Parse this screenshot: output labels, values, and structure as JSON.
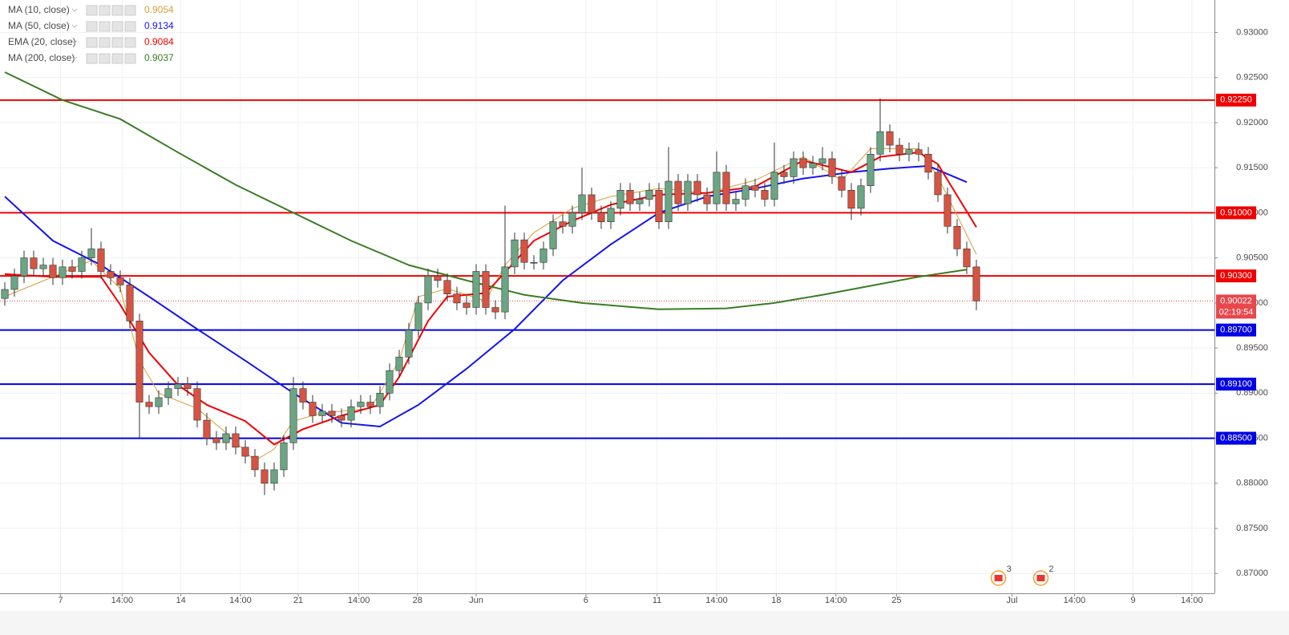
{
  "chart_data": {
    "type": "candlestick",
    "xlim": [
      -0.5,
      125.75
    ],
    "ylim": [
      0.8678,
      0.9336
    ],
    "yticks": [
      {
        "value": 0.93,
        "label": "0.93000"
      },
      {
        "value": 0.925,
        "label": "0.92500"
      },
      {
        "value": 0.92,
        "label": "0.92000"
      },
      {
        "value": 0.915,
        "label": "0.91500"
      },
      {
        "value": 0.91,
        "label": "0.91000"
      },
      {
        "value": 0.905,
        "label": "0.90500"
      },
      {
        "value": 0.9,
        "label": "0.90000"
      },
      {
        "value": 0.895,
        "label": "0.89500"
      },
      {
        "value": 0.89,
        "label": "0.89000"
      },
      {
        "value": 0.885,
        "label": "0.88500"
      },
      {
        "value": 0.88,
        "label": "0.88000"
      },
      {
        "value": 0.875,
        "label": "0.87500"
      },
      {
        "value": 0.87,
        "label": "0.87000"
      }
    ],
    "xticks": [
      {
        "value": 5.8,
        "label": "7"
      },
      {
        "value": 12.2,
        "label": "14:00"
      },
      {
        "value": 18.3,
        "label": "14"
      },
      {
        "value": 24.5,
        "label": "14:00"
      },
      {
        "value": 30.5,
        "label": "21"
      },
      {
        "value": 36.8,
        "label": "14:00"
      },
      {
        "value": 42.9,
        "label": "28"
      },
      {
        "value": 49,
        "label": "Jun"
      },
      {
        "value": 60.4,
        "label": "6"
      },
      {
        "value": 67.8,
        "label": "11"
      },
      {
        "value": 74,
        "label": "14:00"
      },
      {
        "value": 80.2,
        "label": "18"
      },
      {
        "value": 86.4,
        "label": "14:00"
      },
      {
        "value": 92.7,
        "label": "25"
      },
      {
        "value": 104.7,
        "label": "Jul"
      },
      {
        "value": 111.2,
        "label": "14:00"
      },
      {
        "value": 117.3,
        "label": "9"
      },
      {
        "value": 123.4,
        "label": "14:00"
      }
    ],
    "grid": true,
    "up_color": "#6ba583",
    "down_color": "#d75442",
    "x": [
      0,
      1,
      2,
      3,
      4,
      5,
      6,
      7,
      8,
      9,
      10,
      11,
      12,
      13,
      14,
      15,
      16,
      17,
      18,
      19,
      20,
      21,
      22,
      23,
      24,
      25,
      26,
      27,
      28,
      29,
      30,
      31,
      32,
      33,
      34,
      35,
      36,
      37,
      38,
      39,
      40,
      41,
      42,
      43,
      44,
      45,
      46,
      47,
      48,
      49,
      50,
      51,
      52,
      53,
      54,
      55,
      56,
      57,
      58,
      59,
      60,
      61,
      62,
      63,
      64,
      65,
      66,
      67,
      68,
      69,
      70,
      71,
      72,
      73,
      74,
      75,
      76,
      77,
      78,
      79,
      80,
      81,
      82,
      83,
      84,
      85,
      86,
      87,
      88,
      89,
      90,
      91,
      92,
      93,
      94,
      95,
      96,
      97,
      98,
      99,
      100,
      101
    ],
    "open": [
      0.9005,
      0.9015,
      0.903,
      0.905,
      0.9038,
      0.9042,
      0.9028,
      0.904,
      0.9035,
      0.905,
      0.906,
      0.9035,
      0.9028,
      0.902,
      0.898,
      0.889,
      0.8885,
      0.8895,
      0.8905,
      0.891,
      0.8905,
      0.887,
      0.885,
      0.8845,
      0.8855,
      0.884,
      0.883,
      0.8815,
      0.88,
      0.8815,
      0.8845,
      0.8905,
      0.889,
      0.8875,
      0.888,
      0.8875,
      0.887,
      0.8885,
      0.889,
      0.8885,
      0.89,
      0.8925,
      0.894,
      0.897,
      0.9,
      0.903,
      0.9025,
      0.901,
      0.9,
      0.8995,
      0.9035,
      0.8995,
      0.899,
      0.904,
      0.907,
      0.9045,
      0.9045,
      0.906,
      0.909,
      0.9085,
      0.91,
      0.912,
      0.91,
      0.909,
      0.9105,
      0.9125,
      0.911,
      0.9115,
      0.9125,
      0.909,
      0.9135,
      0.911,
      0.9135,
      0.912,
      0.911,
      0.9145,
      0.911,
      0.9115,
      0.913,
      0.9125,
      0.9115,
      0.9145,
      0.914,
      0.916,
      0.915,
      0.9155,
      0.916,
      0.914,
      0.9125,
      0.9105,
      0.913,
      0.9165,
      0.919,
      0.9175,
      0.9165,
      0.917,
      0.9165,
      0.9145,
      0.912,
      0.9085,
      0.906,
      0.904
    ],
    "high": [
      0.9023,
      0.9038,
      0.9058,
      0.9058,
      0.905,
      0.905,
      0.9048,
      0.9048,
      0.9058,
      0.9083,
      0.9068,
      0.9043,
      0.9036,
      0.9028,
      0.8988,
      0.8898,
      0.8903,
      0.8913,
      0.8918,
      0.8918,
      0.8913,
      0.8878,
      0.8858,
      0.8863,
      0.8863,
      0.8848,
      0.8838,
      0.8823,
      0.8823,
      0.8853,
      0.8918,
      0.8913,
      0.8898,
      0.8888,
      0.8888,
      0.8883,
      0.8893,
      0.8898,
      0.8898,
      0.8908,
      0.8933,
      0.8948,
      0.8978,
      0.9008,
      0.9038,
      0.9038,
      0.9033,
      0.9018,
      0.9008,
      0.9043,
      0.9043,
      0.9003,
      0.9108,
      0.9078,
      0.9078,
      0.9053,
      0.9068,
      0.9098,
      0.9098,
      0.9108,
      0.915,
      0.9128,
      0.9108,
      0.9113,
      0.9133,
      0.9133,
      0.9123,
      0.9133,
      0.9133,
      0.9173,
      0.9143,
      0.9143,
      0.9143,
      0.9128,
      0.9168,
      0.9153,
      0.9123,
      0.9138,
      0.9138,
      0.9133,
      0.9178,
      0.9153,
      0.9168,
      0.9168,
      0.9163,
      0.9173,
      0.9168,
      0.9148,
      0.9133,
      0.9138,
      0.9173,
      0.9227,
      0.9198,
      0.9183,
      0.9178,
      0.9178,
      0.9173,
      0.9153,
      0.9128,
      0.9093,
      0.9068,
      0.9048
    ],
    "low": [
      0.8997,
      0.9007,
      0.9022,
      0.903,
      0.903,
      0.902,
      0.902,
      0.9027,
      0.9027,
      0.9042,
      0.9027,
      0.902,
      0.9012,
      0.8972,
      0.885,
      0.8877,
      0.8877,
      0.8887,
      0.8897,
      0.8897,
      0.8862,
      0.8842,
      0.8837,
      0.8837,
      0.8832,
      0.8822,
      0.8807,
      0.8787,
      0.8792,
      0.8807,
      0.8837,
      0.8882,
      0.8867,
      0.8867,
      0.8867,
      0.8862,
      0.8862,
      0.8877,
      0.8877,
      0.8877,
      0.8892,
      0.8917,
      0.8932,
      0.8962,
      0.8992,
      0.9017,
      0.9002,
      0.8992,
      0.8987,
      0.8987,
      0.8987,
      0.8982,
      0.8982,
      0.9032,
      0.9037,
      0.9037,
      0.9037,
      0.9052,
      0.9077,
      0.9077,
      0.9092,
      0.9092,
      0.9082,
      0.9082,
      0.9097,
      0.9102,
      0.9102,
      0.9107,
      0.9082,
      0.9082,
      0.9102,
      0.9102,
      0.9112,
      0.9102,
      0.9102,
      0.9102,
      0.9102,
      0.9107,
      0.9117,
      0.9107,
      0.9107,
      0.9132,
      0.9132,
      0.9142,
      0.9142,
      0.9147,
      0.9132,
      0.9117,
      0.9092,
      0.9097,
      0.9122,
      0.9157,
      0.9167,
      0.9157,
      0.9157,
      0.9157,
      0.9137,
      0.9112,
      0.9077,
      0.9052,
      0.9032,
      0.8992
    ],
    "close": [
      0.9015,
      0.903,
      0.905,
      0.9038,
      0.9042,
      0.9028,
      0.904,
      0.9035,
      0.905,
      0.906,
      0.9035,
      0.9028,
      0.902,
      0.898,
      0.889,
      0.8885,
      0.8895,
      0.8905,
      0.891,
      0.8905,
      0.887,
      0.885,
      0.8845,
      0.8855,
      0.884,
      0.883,
      0.8815,
      0.88,
      0.8815,
      0.8845,
      0.8905,
      0.889,
      0.8875,
      0.888,
      0.8875,
      0.887,
      0.8885,
      0.889,
      0.8885,
      0.89,
      0.8925,
      0.894,
      0.897,
      0.9,
      0.903,
      0.9025,
      0.901,
      0.9,
      0.8995,
      0.9035,
      0.8995,
      0.899,
      0.904,
      0.907,
      0.9045,
      0.9045,
      0.906,
      0.909,
      0.9085,
      0.91,
      0.912,
      0.91,
      0.909,
      0.9105,
      0.9125,
      0.911,
      0.9115,
      0.9125,
      0.909,
      0.9135,
      0.911,
      0.9135,
      0.912,
      0.911,
      0.9145,
      0.911,
      0.9115,
      0.913,
      0.9125,
      0.9115,
      0.9145,
      0.914,
      0.916,
      0.915,
      0.9155,
      0.916,
      0.914,
      0.9125,
      0.9105,
      0.913,
      0.9165,
      0.919,
      0.9175,
      0.9165,
      0.917,
      0.9165,
      0.9145,
      0.912,
      0.9085,
      0.906,
      0.904,
      0.90022
    ],
    "series": [
      {
        "name": "MA (10, close)",
        "color": "#d4a03a",
        "last": 0.9054,
        "x": [
          0,
          5,
          9,
          12,
          14,
          16,
          20,
          23,
          26,
          28,
          30,
          33,
          38,
          41,
          43,
          46,
          50,
          52,
          55,
          59,
          63,
          68,
          73,
          78,
          83,
          87,
          90,
          95,
          97,
          101
        ],
        "values": [
          0.9007,
          0.9029,
          0.9047,
          0.9016,
          0.8936,
          0.89,
          0.8883,
          0.8856,
          0.8825,
          0.8838,
          0.8869,
          0.8878,
          0.8883,
          0.8936,
          0.9007,
          0.9016,
          0.9002,
          0.9042,
          0.9078,
          0.9105,
          0.9118,
          0.9127,
          0.9122,
          0.9136,
          0.9162,
          0.9136,
          0.9171,
          0.9171,
          0.914,
          0.9054
        ]
      },
      {
        "name": "MA (50, close)",
        "color": "#1414f0",
        "last": 0.9134,
        "x": [
          0,
          5,
          10,
          15,
          20,
          25,
          30,
          35,
          39,
          43,
          48,
          53,
          58,
          63,
          68,
          73,
          78,
          83,
          88,
          92,
          96,
          100
        ],
        "values": [
          0.9118,
          0.9069,
          0.9042,
          0.9007,
          0.8971,
          0.8936,
          0.89,
          0.8867,
          0.8863,
          0.8887,
          0.8927,
          0.8971,
          0.9025,
          0.9065,
          0.91,
          0.9118,
          0.9127,
          0.9138,
          0.9145,
          0.9149,
          0.9152,
          0.9134
        ]
      },
      {
        "name": "EMA (20, close)",
        "color": "#f00000",
        "last": 0.9084,
        "x": [
          0,
          5,
          10,
          12,
          15,
          18,
          21,
          25,
          28,
          31,
          35,
          39,
          41,
          44,
          46,
          50,
          52,
          55,
          59,
          63,
          68,
          73,
          78,
          83,
          88,
          91,
          95,
          97,
          101
        ],
        "values": [
          0.9032,
          0.9029,
          0.9029,
          0.8998,
          0.8945,
          0.8909,
          0.8887,
          0.8869,
          0.8843,
          0.886,
          0.8875,
          0.8887,
          0.8918,
          0.898,
          0.9007,
          0.9011,
          0.9034,
          0.9069,
          0.9091,
          0.9109,
          0.912,
          0.9122,
          0.9129,
          0.9158,
          0.9145,
          0.9162,
          0.9167,
          0.9154,
          0.9084
        ]
      },
      {
        "name": "MA (200, close)",
        "color": "#3a7d22",
        "last": 0.9037,
        "x": [
          0,
          6,
          12,
          18,
          24,
          30,
          36,
          42,
          48,
          54,
          60,
          68,
          75,
          80,
          85,
          90,
          95,
          100
        ],
        "values": [
          0.9256,
          0.9225,
          0.9204,
          0.9167,
          0.9131,
          0.91,
          0.9069,
          0.9042,
          0.9025,
          0.9009,
          0.9,
          0.8993,
          0.8994,
          0.9,
          0.9009,
          0.9019,
          0.9029,
          0.9037
        ]
      }
    ],
    "levels": [
      {
        "value": 0.9225,
        "label": "0.92250",
        "color": "#f00000"
      },
      {
        "value": 0.91,
        "label": "0.91000",
        "color": "#f00000"
      },
      {
        "value": 0.903,
        "label": "0.90300",
        "color": "#f00000"
      },
      {
        "value": 0.897,
        "label": "0.89700",
        "color": "#0000e6"
      },
      {
        "value": 0.891,
        "label": "0.89100",
        "color": "#0000e6"
      },
      {
        "value": 0.885,
        "label": "0.88500",
        "color": "#0000e6"
      }
    ],
    "last": {
      "value": 0.90022,
      "countdown": "02:19:54",
      "color": "#e8474c"
    },
    "events": [
      {
        "x": 103.3,
        "count": 3
      },
      {
        "x": 107.7,
        "count": 2
      }
    ]
  }
}
